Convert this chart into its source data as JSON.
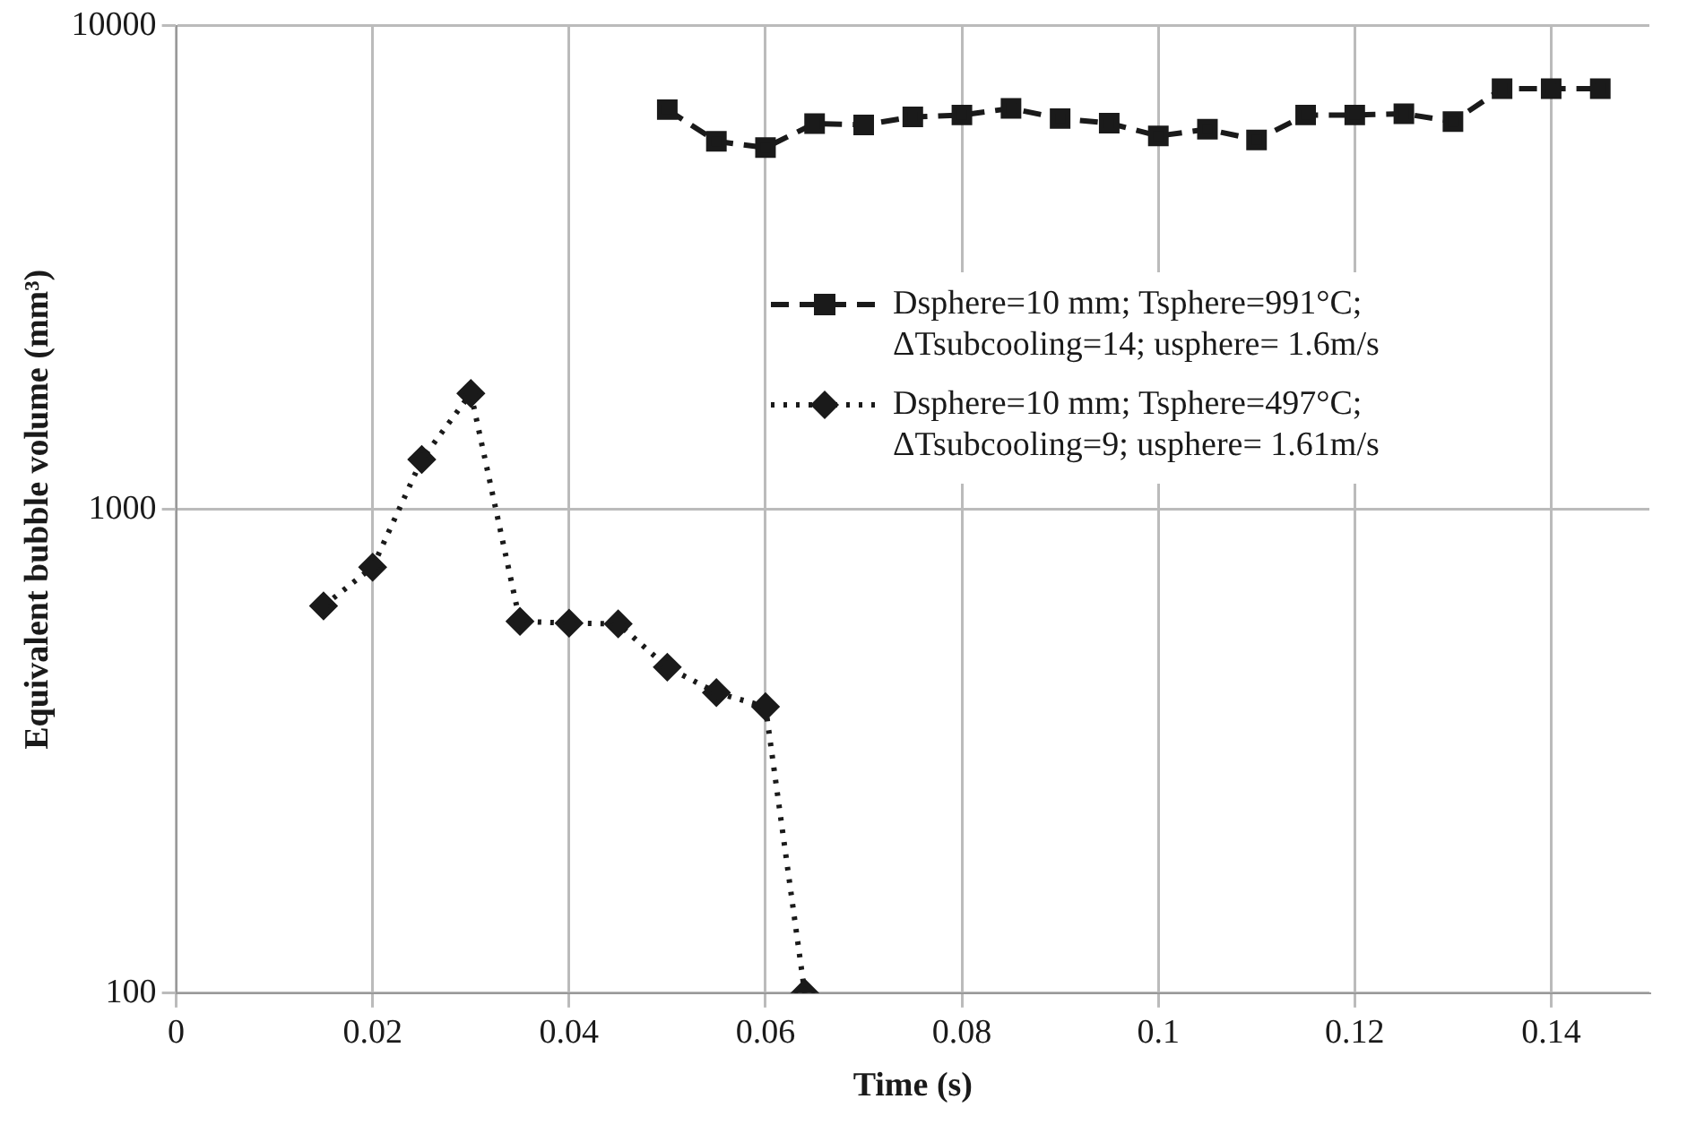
{
  "chart_data": {
    "type": "line",
    "xlabel": "Time (s)",
    "ylabel": "Equivalent bubble volume (mm³)",
    "log": "y",
    "xlim": [
      0,
      0.15
    ],
    "xticks": [
      0,
      0.02,
      0.04,
      0.06,
      0.08,
      0.1,
      0.12,
      0.14
    ],
    "ylim": [
      100,
      10000
    ],
    "yticks": [
      100,
      1000,
      10000
    ],
    "grid": true,
    "legend": "right",
    "series": [
      {
        "name": "Dsphere=10 mm; Tsphere=991°C; ΔTsubcooling=14; usphere= 1.6m/s",
        "color": "#1a1a1a",
        "marker": "square",
        "line_style": "dashed",
        "x": [
          0.05,
          0.055,
          0.06,
          0.065,
          0.07,
          0.075,
          0.08,
          0.085,
          0.09,
          0.095,
          0.1,
          0.105,
          0.11,
          0.115,
          0.12,
          0.125,
          0.13,
          0.135,
          0.14,
          0.145
        ],
        "values": [
          6710,
          5770,
          5600,
          6280,
          6240,
          6480,
          6540,
          6750,
          6430,
          6290,
          5920,
          6110,
          5810,
          6540,
          6540,
          6580,
          6340,
          7410,
          7410,
          7410
        ]
      },
      {
        "name": "Dsphere=10 mm; Tsphere=497°C; ΔTsubcooling=9; usphere= 1.61m/s",
        "color": "#1a1a1a",
        "marker": "diamond",
        "line_style": "dotted",
        "x": [
          0.015,
          0.02,
          0.025,
          0.03,
          0.035,
          0.04,
          0.045,
          0.05,
          0.055,
          0.06,
          0.064
        ],
        "values": [
          632,
          760,
          1269,
          1738,
          587,
          582,
          580,
          472,
          418,
          391,
          100
        ]
      }
    ]
  }
}
